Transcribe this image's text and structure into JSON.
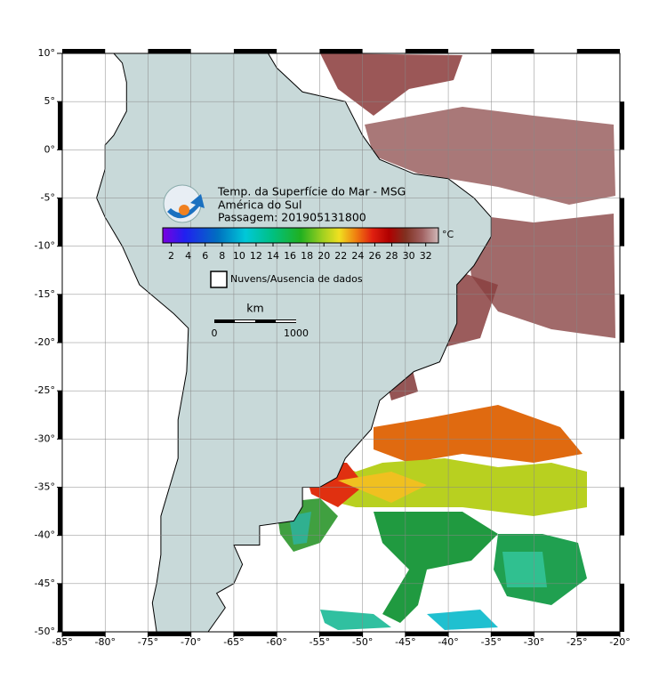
{
  "map": {
    "title_lines": [
      "Temp. da Superfície do Mar - MSG",
      "América do Sul",
      "Passagem: 201905131800"
    ],
    "lon_ticks": [
      {
        "value": -85,
        "label": "-85°"
      },
      {
        "value": -80,
        "label": "-80°"
      },
      {
        "value": -75,
        "label": "-75°"
      },
      {
        "value": -70,
        "label": "-70°"
      },
      {
        "value": -65,
        "label": "-65°"
      },
      {
        "value": -60,
        "label": "-60°"
      },
      {
        "value": -55,
        "label": "-55°"
      },
      {
        "value": -50,
        "label": "-50°"
      },
      {
        "value": -45,
        "label": "-45°"
      },
      {
        "value": -40,
        "label": "-40°"
      },
      {
        "value": -35,
        "label": "-35°"
      },
      {
        "value": -30,
        "label": "-30°"
      },
      {
        "value": -25,
        "label": "-25°"
      },
      {
        "value": -20,
        "label": "-20°"
      }
    ],
    "lat_ticks": [
      {
        "value": 10,
        "label": "10°"
      },
      {
        "value": 5,
        "label": "5°"
      },
      {
        "value": 0,
        "label": "0°"
      },
      {
        "value": -5,
        "label": "-5°"
      },
      {
        "value": -10,
        "label": "-10°"
      },
      {
        "value": -15,
        "label": "-15°"
      },
      {
        "value": -20,
        "label": "-20°"
      },
      {
        "value": -25,
        "label": "-25°"
      },
      {
        "value": -30,
        "label": "-30°"
      },
      {
        "value": -35,
        "label": "-35°"
      },
      {
        "value": -40,
        "label": "-40°"
      },
      {
        "value": -45,
        "label": "-45°"
      },
      {
        "value": -50,
        "label": "-50°"
      }
    ],
    "colorbar": {
      "unit": "°C",
      "ticks": [
        2,
        4,
        6,
        8,
        10,
        12,
        14,
        16,
        18,
        20,
        22,
        24,
        26,
        28,
        30,
        32
      ]
    },
    "legend": {
      "label": "Nuvens/Ausencia de dados"
    },
    "scale_bar": {
      "title": "km",
      "labels": [
        "0",
        "1000"
      ]
    }
  }
}
